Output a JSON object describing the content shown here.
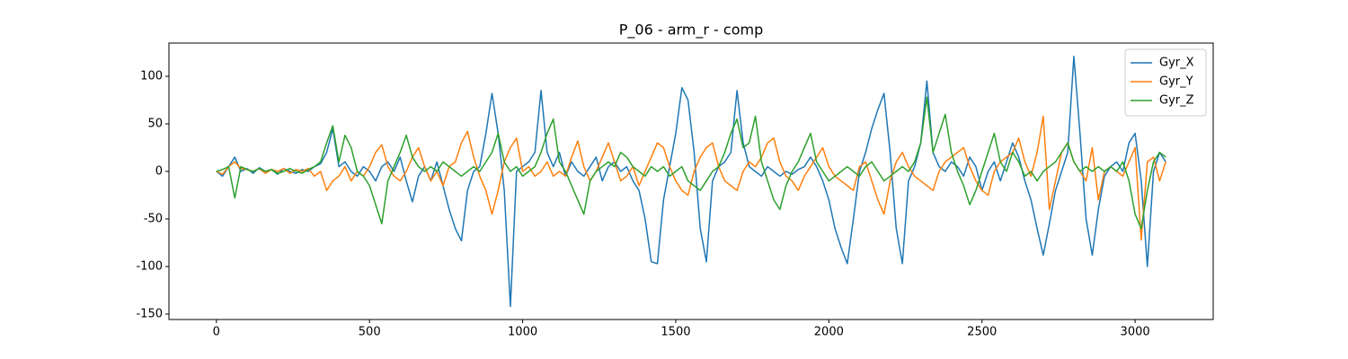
{
  "chart_data": {
    "type": "line",
    "title": "P_06 - arm_r - comp",
    "x": [
      0,
      20,
      40,
      60,
      80,
      100,
      120,
      140,
      160,
      180,
      200,
      220,
      240,
      260,
      280,
      300,
      320,
      340,
      360,
      380,
      400,
      420,
      440,
      460,
      480,
      500,
      520,
      540,
      560,
      580,
      600,
      620,
      640,
      660,
      680,
      700,
      720,
      740,
      760,
      780,
      800,
      820,
      840,
      860,
      880,
      900,
      920,
      940,
      960,
      980,
      1000,
      1020,
      1040,
      1060,
      1080,
      1100,
      1120,
      1140,
      1160,
      1180,
      1200,
      1220,
      1240,
      1260,
      1280,
      1300,
      1320,
      1340,
      1360,
      1380,
      1400,
      1420,
      1440,
      1460,
      1480,
      1500,
      1520,
      1540,
      1560,
      1580,
      1600,
      1620,
      1640,
      1660,
      1680,
      1700,
      1720,
      1740,
      1760,
      1780,
      1800,
      1820,
      1840,
      1860,
      1880,
      1900,
      1920,
      1940,
      1960,
      1980,
      2000,
      2020,
      2040,
      2060,
      2080,
      2100,
      2120,
      2140,
      2160,
      2180,
      2200,
      2220,
      2240,
      2260,
      2280,
      2300,
      2320,
      2340,
      2360,
      2380,
      2400,
      2420,
      2440,
      2460,
      2480,
      2500,
      2520,
      2540,
      2560,
      2580,
      2600,
      2620,
      2640,
      2660,
      2680,
      2700,
      2720,
      2740,
      2760,
      2780,
      2800,
      2820,
      2840,
      2860,
      2880,
      2900,
      2920,
      2940,
      2960,
      2980,
      3000,
      3020,
      3040,
      3060,
      3080,
      3100
    ],
    "series": [
      {
        "name": "Gyr_X",
        "color": "#1f77b4",
        "values": [
          0,
          -5,
          5,
          15,
          0,
          3,
          -2,
          4,
          0,
          2,
          -3,
          3,
          0,
          -2,
          2,
          0,
          5,
          8,
          20,
          45,
          5,
          10,
          0,
          -5,
          5,
          0,
          -10,
          5,
          10,
          0,
          15,
          -10,
          -32,
          -5,
          5,
          -10,
          10,
          -15,
          -40,
          -60,
          -73,
          -20,
          0,
          5,
          40,
          82,
          40,
          -20,
          -142,
          0,
          5,
          10,
          20,
          85,
          20,
          5,
          20,
          -5,
          10,
          0,
          -5,
          5,
          15,
          -10,
          5,
          10,
          0,
          5,
          -10,
          -20,
          -50,
          -95,
          -97,
          -30,
          5,
          40,
          88,
          75,
          20,
          -60,
          -95,
          -10,
          5,
          10,
          20,
          85,
          30,
          5,
          0,
          -5,
          5,
          0,
          -5,
          0,
          -3,
          2,
          5,
          15,
          5,
          -10,
          -30,
          -60,
          -80,
          -97,
          -50,
          0,
          20,
          45,
          65,
          82,
          20,
          -60,
          -97,
          -10,
          5,
          30,
          95,
          20,
          5,
          0,
          10,
          5,
          -5,
          15,
          5,
          -20,
          0,
          10,
          -10,
          10,
          30,
          15,
          -10,
          -30,
          -60,
          -88,
          -55,
          -20,
          0,
          20,
          121,
          40,
          -50,
          -88,
          -40,
          -5,
          5,
          10,
          0,
          30,
          40,
          -10,
          -100,
          0,
          20,
          10
        ]
      },
      {
        "name": "Gyr_Y",
        "color": "#ff7f0e",
        "values": [
          0,
          -3,
          5,
          10,
          3,
          2,
          0,
          3,
          -2,
          2,
          0,
          3,
          -2,
          2,
          0,
          3,
          -5,
          0,
          -20,
          -10,
          -5,
          5,
          -10,
          0,
          -5,
          5,
          20,
          28,
          5,
          -5,
          -10,
          0,
          15,
          25,
          5,
          -10,
          0,
          -15,
          5,
          10,
          30,
          42,
          15,
          -5,
          -20,
          -45,
          -20,
          10,
          25,
          35,
          0,
          5,
          -5,
          0,
          10,
          -5,
          0,
          -5,
          15,
          32,
          5,
          -10,
          0,
          15,
          30,
          10,
          -10,
          -5,
          5,
          -15,
          0,
          15,
          30,
          25,
          5,
          -10,
          -20,
          -25,
          0,
          15,
          25,
          30,
          5,
          -10,
          -15,
          -20,
          0,
          10,
          5,
          15,
          30,
          35,
          10,
          -5,
          -10,
          -20,
          -5,
          5,
          15,
          25,
          5,
          -5,
          -10,
          -15,
          -20,
          5,
          10,
          -10,
          -30,
          -45,
          -10,
          10,
          20,
          5,
          -5,
          -10,
          -15,
          -20,
          0,
          10,
          15,
          20,
          25,
          5,
          -10,
          -20,
          -25,
          0,
          10,
          15,
          20,
          35,
          10,
          -5,
          20,
          58,
          -40,
          -10,
          20,
          30,
          10,
          0,
          -10,
          25,
          -30,
          0,
          5,
          0,
          -5,
          10,
          25,
          -72,
          10,
          15,
          -10,
          10
        ]
      },
      {
        "name": "Gyr_Z",
        "color": "#2ca02c",
        "values": [
          0,
          2,
          5,
          -28,
          5,
          2,
          0,
          3,
          0,
          2,
          -2,
          0,
          3,
          0,
          -2,
          2,
          5,
          10,
          30,
          48,
          10,
          38,
          25,
          0,
          -5,
          -15,
          -35,
          -55,
          -10,
          5,
          20,
          38,
          15,
          5,
          0,
          5,
          0,
          10,
          5,
          0,
          -5,
          0,
          5,
          0,
          10,
          20,
          40,
          10,
          0,
          5,
          -5,
          0,
          5,
          20,
          40,
          55,
          10,
          0,
          -15,
          -30,
          -45,
          -10,
          0,
          5,
          10,
          5,
          20,
          15,
          5,
          0,
          -5,
          5,
          0,
          5,
          -5,
          0,
          5,
          -10,
          -15,
          -20,
          -10,
          0,
          5,
          20,
          40,
          55,
          25,
          30,
          58,
          10,
          -10,
          -30,
          -40,
          -15,
          0,
          10,
          25,
          40,
          10,
          0,
          -10,
          -5,
          0,
          5,
          0,
          -5,
          5,
          10,
          0,
          -10,
          -5,
          0,
          5,
          0,
          10,
          30,
          78,
          20,
          40,
          60,
          20,
          0,
          -15,
          -35,
          -20,
          0,
          20,
          40,
          10,
          0,
          20,
          10,
          -5,
          0,
          -10,
          0,
          5,
          10,
          20,
          30,
          10,
          0,
          5,
          0,
          5,
          0,
          5,
          0,
          10,
          -10,
          -45,
          -60,
          -20,
          10,
          20,
          15
        ]
      }
    ],
    "xlim": [
      -155,
      3255
    ],
    "ylim": [
      -155.7,
      134.9
    ],
    "xticks": [
      0,
      500,
      1000,
      1500,
      2000,
      2500,
      3000
    ],
    "yticks": [
      -150,
      -100,
      -50,
      0,
      50,
      100
    ],
    "legend": "upper right"
  }
}
